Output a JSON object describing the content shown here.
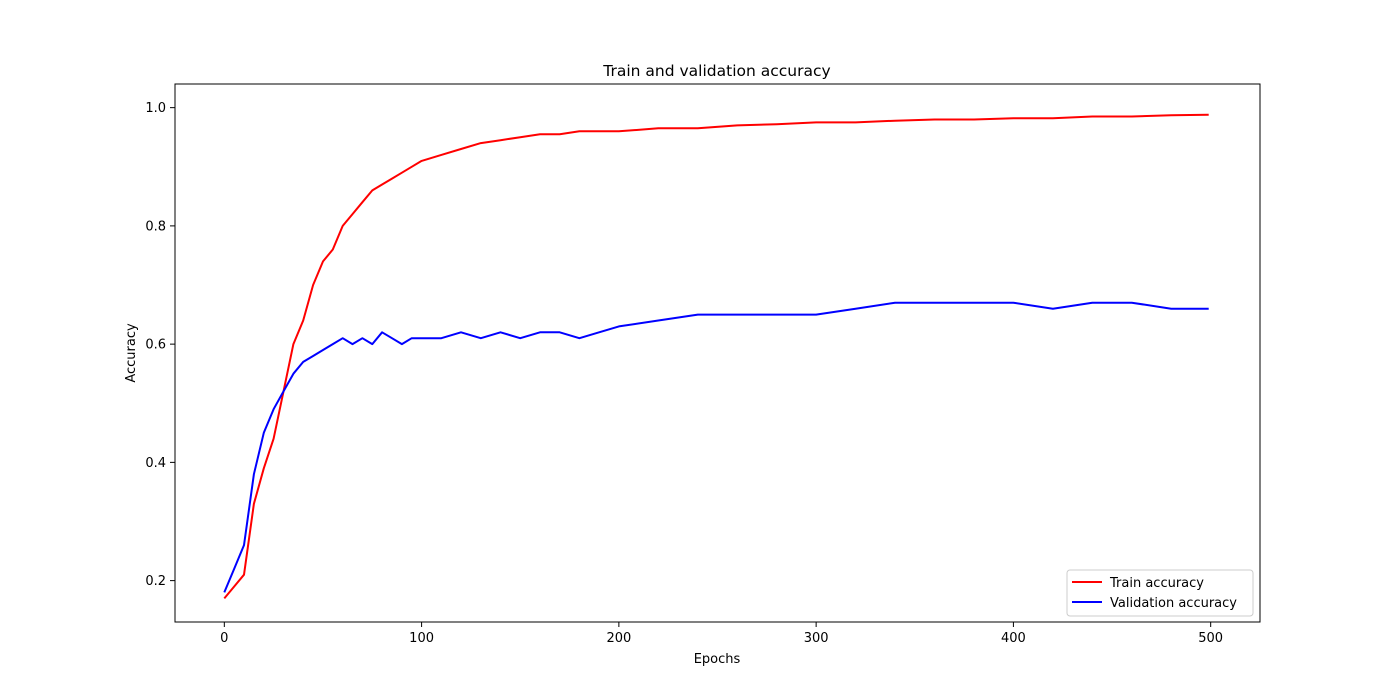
{
  "chart_data": {
    "type": "line",
    "title": "Train and validation accuracy",
    "xlabel": "Epochs",
    "ylabel": "Accuracy",
    "xlim": [
      -25,
      525
    ],
    "ylim": [
      0.13,
      1.04
    ],
    "xticks": [
      0,
      100,
      200,
      300,
      400,
      500
    ],
    "yticks": [
      0.2,
      0.4,
      0.6,
      0.8,
      1.0
    ],
    "ytick_labels": [
      "0.2",
      "0.4",
      "0.6",
      "0.8",
      "1.0"
    ],
    "grid": false,
    "legend_position": "lower-right",
    "series": [
      {
        "name": "Train accuracy",
        "color": "#ff0000",
        "x": [
          0,
          5,
          10,
          15,
          20,
          25,
          30,
          35,
          40,
          45,
          50,
          55,
          60,
          65,
          70,
          75,
          80,
          85,
          90,
          95,
          100,
          110,
          120,
          130,
          140,
          150,
          160,
          170,
          180,
          190,
          200,
          220,
          240,
          260,
          280,
          300,
          320,
          340,
          360,
          380,
          400,
          420,
          440,
          460,
          480,
          499
        ],
        "values": [
          0.17,
          0.19,
          0.21,
          0.33,
          0.39,
          0.44,
          0.52,
          0.6,
          0.64,
          0.7,
          0.74,
          0.76,
          0.8,
          0.82,
          0.84,
          0.86,
          0.87,
          0.88,
          0.89,
          0.9,
          0.91,
          0.92,
          0.93,
          0.94,
          0.945,
          0.95,
          0.955,
          0.955,
          0.96,
          0.96,
          0.96,
          0.965,
          0.965,
          0.97,
          0.972,
          0.975,
          0.975,
          0.978,
          0.98,
          0.98,
          0.982,
          0.982,
          0.985,
          0.985,
          0.987,
          0.988
        ]
      },
      {
        "name": "Validation accuracy",
        "color": "#0000ff",
        "x": [
          0,
          5,
          10,
          15,
          20,
          25,
          30,
          35,
          40,
          45,
          50,
          55,
          60,
          65,
          70,
          75,
          80,
          85,
          90,
          95,
          100,
          110,
          120,
          130,
          140,
          150,
          160,
          170,
          180,
          190,
          200,
          220,
          240,
          260,
          280,
          300,
          320,
          340,
          360,
          380,
          400,
          420,
          440,
          460,
          480,
          499
        ],
        "values": [
          0.18,
          0.22,
          0.26,
          0.38,
          0.45,
          0.49,
          0.52,
          0.55,
          0.57,
          0.58,
          0.59,
          0.6,
          0.61,
          0.6,
          0.61,
          0.6,
          0.62,
          0.61,
          0.6,
          0.61,
          0.61,
          0.61,
          0.62,
          0.61,
          0.62,
          0.61,
          0.62,
          0.62,
          0.61,
          0.62,
          0.63,
          0.64,
          0.65,
          0.65,
          0.65,
          0.65,
          0.66,
          0.67,
          0.67,
          0.67,
          0.67,
          0.66,
          0.67,
          0.67,
          0.66,
          0.66
        ]
      }
    ]
  }
}
